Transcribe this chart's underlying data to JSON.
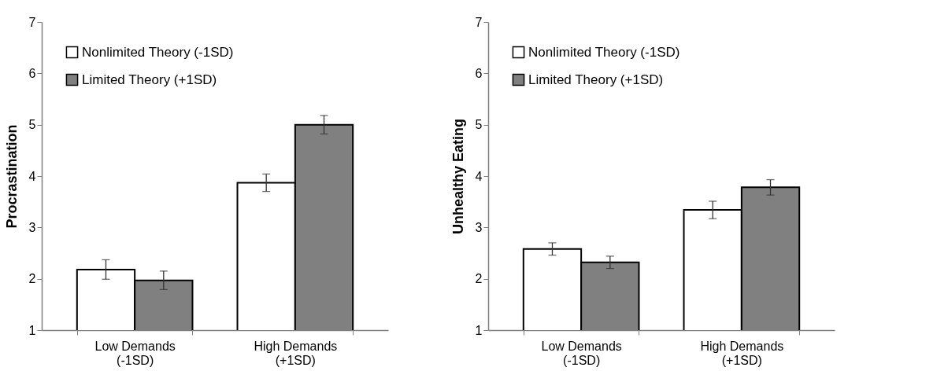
{
  "chart_data": [
    {
      "type": "bar",
      "ylabel": "Procrastination",
      "categories": [
        "Low Demands\n(-1SD)",
        "High Demands\n(+1SD)"
      ],
      "ylim": [
        1,
        7
      ],
      "yticks": [
        1,
        2,
        3,
        4,
        5,
        6,
        7
      ],
      "grid": false,
      "legend": "top left",
      "series": [
        {
          "name": "Nonlimited Theory (-1SD)",
          "color": "#ffffff",
          "values": [
            2.18,
            3.87
          ],
          "errors": [
            0.19,
            0.17
          ]
        },
        {
          "name": "Limited Theory (+1SD)",
          "color": "#808080",
          "values": [
            1.97,
            5.0
          ],
          "errors": [
            0.18,
            0.18
          ]
        }
      ]
    },
    {
      "type": "bar",
      "ylabel": "Unhealthy Eating",
      "categories": [
        "Low Demands\n(-1SD)",
        "High Demands\n(+1SD)"
      ],
      "ylim": [
        1,
        7
      ],
      "yticks": [
        1,
        2,
        3,
        4,
        5,
        6,
        7
      ],
      "grid": false,
      "legend": "top left",
      "series": [
        {
          "name": "Nonlimited Theory (-1SD)",
          "color": "#ffffff",
          "values": [
            2.58,
            3.34
          ],
          "errors": [
            0.12,
            0.17
          ]
        },
        {
          "name": "Limited Theory (+1SD)",
          "color": "#808080",
          "values": [
            2.32,
            3.78
          ],
          "errors": [
            0.12,
            0.15
          ]
        }
      ]
    }
  ]
}
